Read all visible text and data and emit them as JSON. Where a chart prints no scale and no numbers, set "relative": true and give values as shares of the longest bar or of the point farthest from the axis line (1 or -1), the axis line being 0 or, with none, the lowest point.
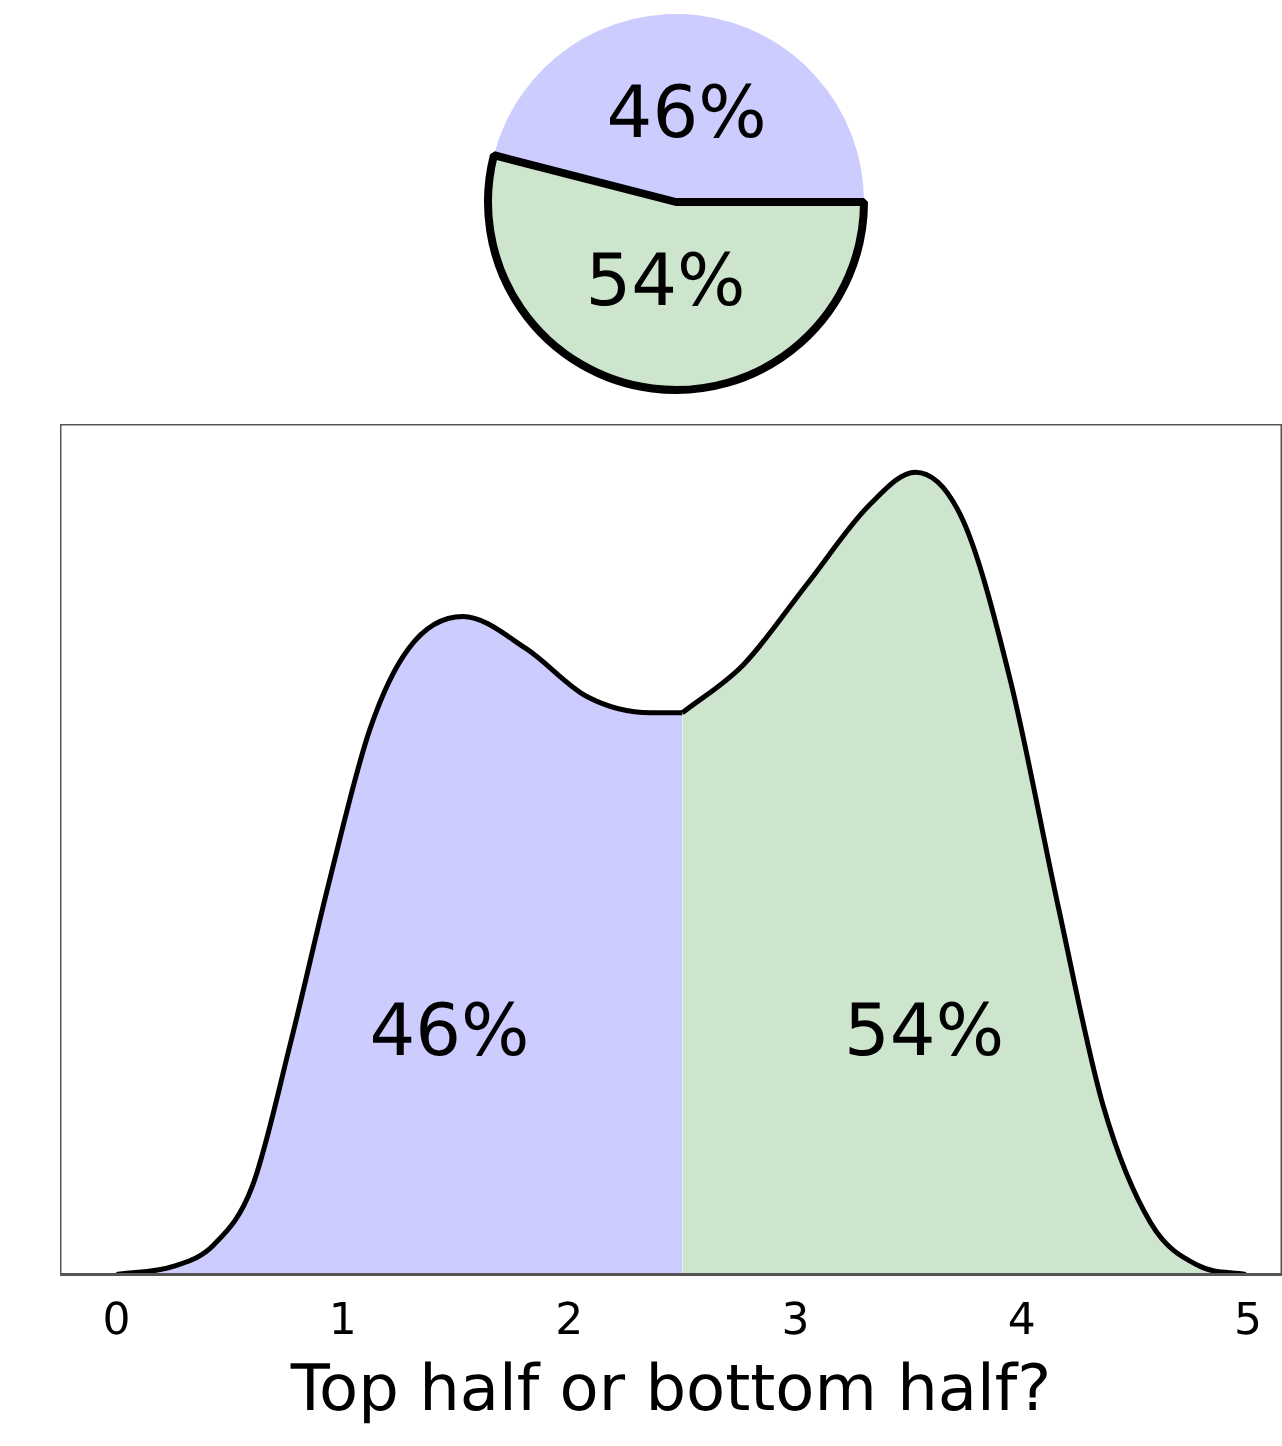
{
  "chart_data": [
    {
      "type": "pie",
      "categories": [
        null,
        null
      ],
      "values": [
        46,
        54
      ],
      "colors": [
        "#ccccff",
        "#cde5cd"
      ],
      "value_labels": [
        "46%",
        "54%"
      ],
      "legend": false
    },
    {
      "type": "area",
      "relative": true,
      "xlabel": "Top half or bottom half?",
      "xlim": [
        -0.25,
        5.15
      ],
      "xticks": [
        0,
        1,
        2,
        3,
        4,
        5
      ],
      "tick_labels": "x",
      "grid": false,
      "legend": false,
      "series": [
        {
          "color": "#ccccff",
          "x": [
            0,
            0.25,
            0.43,
            0.6,
            0.77,
            0.94,
            1.12,
            1.29,
            1.53,
            1.81,
            2.08,
            2.36,
            2.5
          ],
          "values": [
            0,
            0.01,
            0.037,
            0.11,
            0.29,
            0.49,
            0.68,
            0.78,
            0.82,
            0.78,
            0.72,
            0.7,
            0.7
          ]
        },
        {
          "color": "#cde5cd",
          "x": [
            2.5,
            2.77,
            3.05,
            3.33,
            3.53,
            3.74,
            3.95,
            4.16,
            4.36,
            4.57,
            4.78,
            4.99
          ],
          "values": [
            0.7,
            0.76,
            0.86,
            0.96,
            1.0,
            0.94,
            0.74,
            0.46,
            0.21,
            0.064,
            0.011,
            0
          ]
        }
      ],
      "annotations": [
        "46%",
        "54%"
      ]
    }
  ]
}
